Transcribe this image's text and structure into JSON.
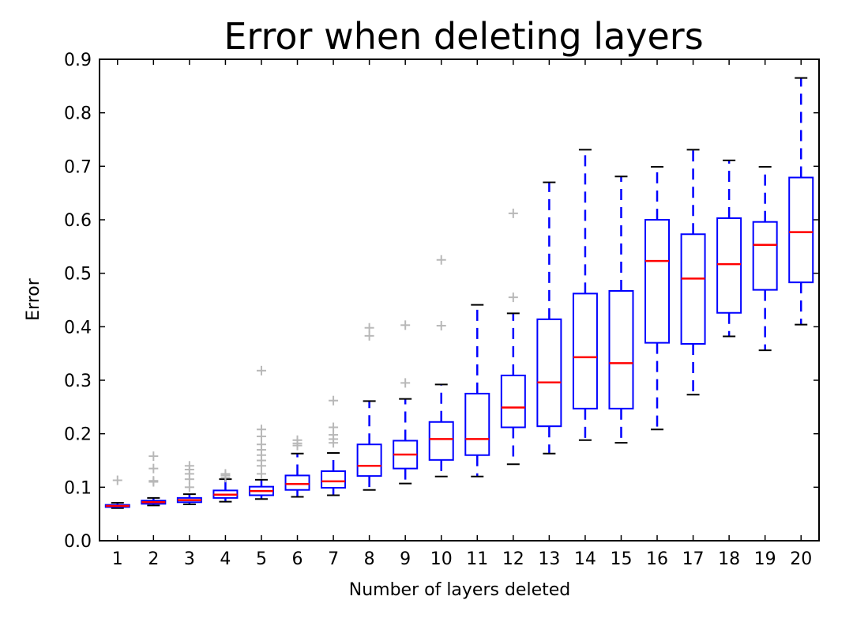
{
  "chart_data": {
    "type": "box",
    "title": "Error when deleting layers",
    "xlabel": "Number of layers deleted",
    "ylabel": "Error",
    "ylim": [
      0.0,
      0.9
    ],
    "yticks": [
      "0.0",
      "0.1",
      "0.2",
      "0.3",
      "0.4",
      "0.5",
      "0.6",
      "0.7",
      "0.8",
      "0.9"
    ],
    "categories": [
      "1",
      "2",
      "3",
      "4",
      "5",
      "6",
      "7",
      "8",
      "9",
      "10",
      "11",
      "12",
      "13",
      "14",
      "15",
      "16",
      "17",
      "18",
      "19",
      "20"
    ],
    "boxes": [
      {
        "whislo": 0.061,
        "q1": 0.063,
        "med": 0.065,
        "q3": 0.067,
        "whishi": 0.071,
        "fliers": [
          0.113
        ]
      },
      {
        "whislo": 0.066,
        "q1": 0.069,
        "med": 0.072,
        "q3": 0.075,
        "whishi": 0.08,
        "fliers": [
          0.11,
          0.112,
          0.135,
          0.158
        ]
      },
      {
        "whislo": 0.068,
        "q1": 0.072,
        "med": 0.076,
        "q3": 0.08,
        "whishi": 0.087,
        "fliers": [
          0.1,
          0.115,
          0.125,
          0.133,
          0.14
        ]
      },
      {
        "whislo": 0.073,
        "q1": 0.08,
        "med": 0.086,
        "q3": 0.094,
        "whishi": 0.115,
        "fliers": [
          0.118,
          0.122,
          0.125
        ]
      },
      {
        "whislo": 0.078,
        "q1": 0.085,
        "med": 0.093,
        "q3": 0.101,
        "whishi": 0.114,
        "fliers": [
          0.125,
          0.14,
          0.15,
          0.16,
          0.17,
          0.18,
          0.195,
          0.208,
          0.318
        ]
      },
      {
        "whislo": 0.082,
        "q1": 0.095,
        "med": 0.106,
        "q3": 0.122,
        "whishi": 0.163,
        "fliers": [
          0.178,
          0.182,
          0.188
        ]
      },
      {
        "whislo": 0.085,
        "q1": 0.099,
        "med": 0.111,
        "q3": 0.13,
        "whishi": 0.164,
        "fliers": [
          0.183,
          0.19,
          0.198,
          0.212,
          0.262
        ]
      },
      {
        "whislo": 0.095,
        "q1": 0.121,
        "med": 0.14,
        "q3": 0.18,
        "whishi": 0.261,
        "fliers": [
          0.383,
          0.398
        ]
      },
      {
        "whislo": 0.107,
        "q1": 0.135,
        "med": 0.161,
        "q3": 0.187,
        "whishi": 0.265,
        "fliers": [
          0.295,
          0.403
        ]
      },
      {
        "whislo": 0.12,
        "q1": 0.151,
        "med": 0.19,
        "q3": 0.222,
        "whishi": 0.292,
        "fliers": [
          0.402,
          0.525
        ]
      },
      {
        "whislo": 0.12,
        "q1": 0.16,
        "med": 0.19,
        "q3": 0.275,
        "whishi": 0.441,
        "fliers": []
      },
      {
        "whislo": 0.143,
        "q1": 0.212,
        "med": 0.249,
        "q3": 0.309,
        "whishi": 0.425,
        "fliers": [
          0.455,
          0.612
        ]
      },
      {
        "whislo": 0.163,
        "q1": 0.214,
        "med": 0.296,
        "q3": 0.414,
        "whishi": 0.67,
        "fliers": []
      },
      {
        "whislo": 0.188,
        "q1": 0.247,
        "med": 0.343,
        "q3": 0.462,
        "whishi": 0.731,
        "fliers": []
      },
      {
        "whislo": 0.183,
        "q1": 0.247,
        "med": 0.332,
        "q3": 0.467,
        "whishi": 0.681,
        "fliers": []
      },
      {
        "whislo": 0.208,
        "q1": 0.37,
        "med": 0.523,
        "q3": 0.6,
        "whishi": 0.699,
        "fliers": []
      },
      {
        "whislo": 0.273,
        "q1": 0.368,
        "med": 0.49,
        "q3": 0.573,
        "whishi": 0.731,
        "fliers": []
      },
      {
        "whislo": 0.382,
        "q1": 0.426,
        "med": 0.517,
        "q3": 0.603,
        "whishi": 0.711,
        "fliers": []
      },
      {
        "whislo": 0.356,
        "q1": 0.469,
        "med": 0.553,
        "q3": 0.596,
        "whishi": 0.699,
        "fliers": []
      },
      {
        "whislo": 0.404,
        "q1": 0.483,
        "med": 0.577,
        "q3": 0.679,
        "whishi": 0.865,
        "fliers": []
      }
    ],
    "grid": false,
    "legend": "none",
    "colors": {
      "box": "#0000ff",
      "whisker": "#0000ff",
      "median": "#ff0000",
      "cap": "#000000",
      "flier": "#b8b8b8"
    }
  }
}
